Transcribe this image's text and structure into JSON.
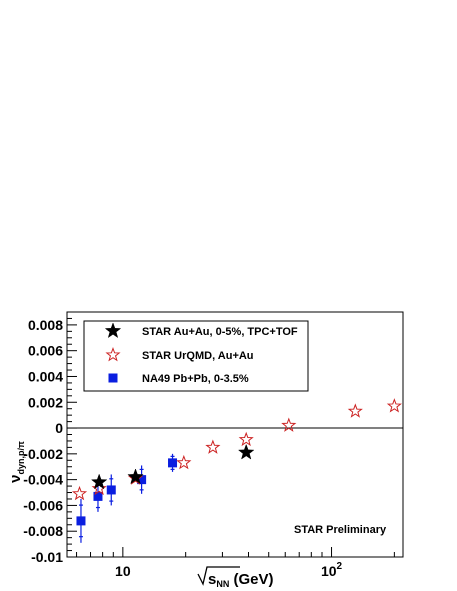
{
  "chart_data": {
    "type": "scatter",
    "x_scale": "log",
    "xlim": [
      5.4,
      220
    ],
    "ylim": [
      -0.01,
      0.009
    ],
    "grid": false,
    "legend_position": "top-left",
    "yticks": [
      0.008,
      0.006,
      0.004,
      0.002,
      0,
      -0.002,
      -0.004,
      -0.006,
      -0.008,
      -0.01
    ],
    "ytick_labels": [
      "0.008",
      "0.006",
      "0.004",
      "0.002",
      "0",
      "-0.002",
      "-0.004",
      "-0.006",
      "-0.008",
      "-0.01"
    ],
    "xtick_labels": [
      {
        "value": 10,
        "base": "10",
        "exp": ""
      },
      {
        "value": 100,
        "base": "10",
        "exp": "2"
      }
    ],
    "ylabel": {
      "main": "ν",
      "sub": "dyn,p/π"
    },
    "xlabel": {
      "main": "s",
      "sub": "NN",
      "unit": " (GeV)"
    },
    "annotation": "STAR Preliminary",
    "series": [
      {
        "name": "STAR Au+Au, 0-5%, TPC+TOF",
        "marker": "star-filled",
        "color": "#000000",
        "points": [
          {
            "x": 7.7,
            "y": -0.0042
          },
          {
            "x": 11.5,
            "y": -0.0038
          },
          {
            "x": 39,
            "y": -0.0019
          }
        ]
      },
      {
        "name": "STAR UrQMD, Au+Au",
        "marker": "star-open",
        "color": "#cc2222",
        "points": [
          {
            "x": 6.2,
            "y": -0.0051
          },
          {
            "x": 7.7,
            "y": -0.0047
          },
          {
            "x": 11.5,
            "y": -0.0039
          },
          {
            "x": 19.6,
            "y": -0.0027
          },
          {
            "x": 27,
            "y": -0.0015
          },
          {
            "x": 39,
            "y": -0.0009
          },
          {
            "x": 62.4,
            "y": 0.0002
          },
          {
            "x": 130,
            "y": 0.0013
          },
          {
            "x": 200,
            "y": 0.0017
          }
        ]
      },
      {
        "name": "NA49 Pb+Pb, 0-3.5%",
        "marker": "square-filled",
        "color": "#0a1ee0",
        "points": [
          {
            "x": 6.3,
            "y": -0.0072,
            "yerr": 0.0017
          },
          {
            "x": 7.6,
            "y": -0.0053,
            "yerr": 0.0012
          },
          {
            "x": 8.8,
            "y": -0.0048,
            "yerr": 0.0012
          },
          {
            "x": 12.3,
            "y": -0.004,
            "yerr": 0.0011
          },
          {
            "x": 17.3,
            "y": -0.0027,
            "yerr": 0.0007
          }
        ]
      }
    ]
  }
}
